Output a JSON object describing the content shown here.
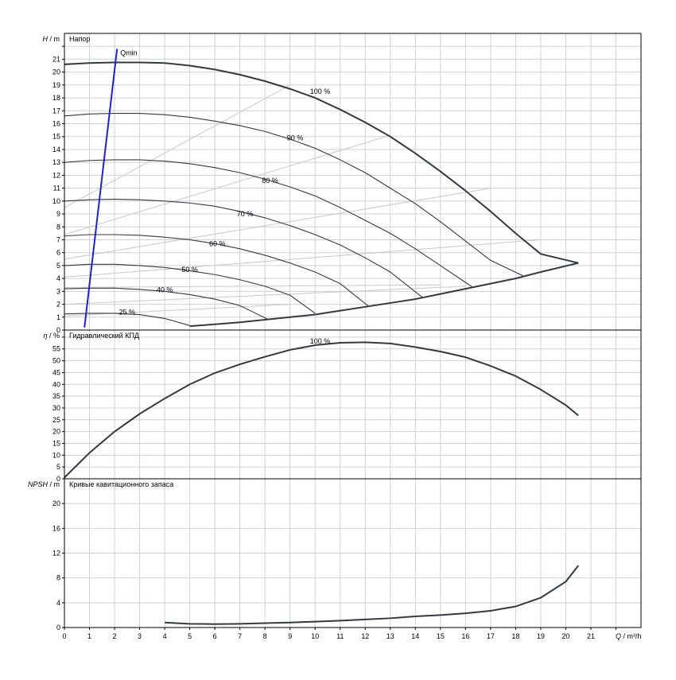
{
  "chart_data": [
    {
      "type": "line",
      "panel": "head",
      "title": "Напор",
      "ylabel_symbol": "H",
      "ylabel_unit": "/ m",
      "xlim": [
        0,
        23
      ],
      "ylim": [
        0,
        23
      ],
      "yticks": [
        0,
        1,
        2,
        3,
        4,
        5,
        6,
        7,
        8,
        9,
        10,
        11,
        12,
        13,
        14,
        15,
        16,
        17,
        18,
        19,
        20,
        21,
        22
      ],
      "ytick_labels": [
        "0",
        "1",
        "2",
        "3",
        "4",
        "5",
        "6",
        "7",
        "8",
        "9",
        "10",
        "11",
        "12",
        "13",
        "14",
        "15",
        "16",
        "17",
        "18",
        "19",
        "20",
        "21",
        ""
      ],
      "grid": true,
      "qmin": {
        "label": "Qmin",
        "points": [
          [
            0.8,
            0.2
          ],
          [
            2.1,
            21.8
          ]
        ],
        "color": "#1f22c8"
      },
      "series": [
        {
          "label": "100 %",
          "label_at": [
            10.2,
            18.5
          ],
          "points": [
            [
              0,
              20.6
            ],
            [
              1,
              20.7
            ],
            [
              2,
              20.75
            ],
            [
              3,
              20.75
            ],
            [
              4,
              20.7
            ],
            [
              5,
              20.5
            ],
            [
              6,
              20.2
            ],
            [
              7,
              19.8
            ],
            [
              8,
              19.3
            ],
            [
              9,
              18.7
            ],
            [
              10,
              18.0
            ],
            [
              11,
              17.1
            ],
            [
              12,
              16.1
            ],
            [
              13,
              15.0
            ],
            [
              14,
              13.7
            ],
            [
              15,
              12.3
            ],
            [
              16,
              10.8
            ],
            [
              17,
              9.2
            ],
            [
              18,
              7.5
            ],
            [
              19,
              5.9
            ],
            [
              20.5,
              5.2
            ]
          ]
        },
        {
          "label": "90 %",
          "label_at": [
            9.2,
            14.9
          ],
          "points": [
            [
              0,
              16.6
            ],
            [
              1,
              16.75
            ],
            [
              2,
              16.8
            ],
            [
              3,
              16.8
            ],
            [
              4,
              16.7
            ],
            [
              5,
              16.5
            ],
            [
              6,
              16.2
            ],
            [
              7,
              15.85
            ],
            [
              8,
              15.4
            ],
            [
              9,
              14.8
            ],
            [
              10,
              14.1
            ],
            [
              11,
              13.2
            ],
            [
              12,
              12.2
            ],
            [
              13,
              11.0
            ],
            [
              14,
              9.8
            ],
            [
              15,
              8.4
            ],
            [
              16,
              6.9
            ],
            [
              17,
              5.4
            ],
            [
              18.3,
              4.2
            ]
          ]
        },
        {
          "label": "80 %",
          "label_at": [
            8.2,
            11.6
          ],
          "points": [
            [
              0,
              13.0
            ],
            [
              1,
              13.15
            ],
            [
              2,
              13.2
            ],
            [
              3,
              13.2
            ],
            [
              4,
              13.1
            ],
            [
              5,
              12.9
            ],
            [
              6,
              12.6
            ],
            [
              7,
              12.2
            ],
            [
              8,
              11.7
            ],
            [
              9,
              11.1
            ],
            [
              10,
              10.4
            ],
            [
              11,
              9.5
            ],
            [
              12,
              8.5
            ],
            [
              13,
              7.5
            ],
            [
              14,
              6.3
            ],
            [
              15,
              5.0
            ],
            [
              16.3,
              3.3
            ]
          ]
        },
        {
          "label": "70 %",
          "label_at": [
            7.2,
            9.0
          ],
          "points": [
            [
              0,
              10.0
            ],
            [
              1,
              10.1
            ],
            [
              2,
              10.15
            ],
            [
              3,
              10.1
            ],
            [
              4,
              10.0
            ],
            [
              5,
              9.85
            ],
            [
              6,
              9.6
            ],
            [
              7,
              9.2
            ],
            [
              8,
              8.7
            ],
            [
              9,
              8.1
            ],
            [
              10,
              7.4
            ],
            [
              11,
              6.6
            ],
            [
              12,
              5.6
            ],
            [
              13,
              4.5
            ],
            [
              14.3,
              2.5
            ]
          ]
        },
        {
          "label": "60 %",
          "label_at": [
            6.1,
            6.7
          ],
          "points": [
            [
              0,
              7.3
            ],
            [
              1,
              7.4
            ],
            [
              2,
              7.4
            ],
            [
              3,
              7.35
            ],
            [
              4,
              7.2
            ],
            [
              5,
              7.0
            ],
            [
              6,
              6.7
            ],
            [
              7,
              6.3
            ],
            [
              8,
              5.8
            ],
            [
              9,
              5.2
            ],
            [
              10,
              4.5
            ],
            [
              11,
              3.6
            ],
            [
              12.1,
              1.9
            ]
          ]
        },
        {
          "label": "50 %",
          "label_at": [
            5.0,
            4.7
          ],
          "points": [
            [
              0,
              5.0
            ],
            [
              1,
              5.1
            ],
            [
              2,
              5.1
            ],
            [
              3,
              5.0
            ],
            [
              4,
              4.85
            ],
            [
              5,
              4.6
            ],
            [
              6,
              4.3
            ],
            [
              7,
              3.9
            ],
            [
              8,
              3.4
            ],
            [
              9,
              2.7
            ],
            [
              10,
              1.3
            ]
          ]
        },
        {
          "label": "40 %",
          "label_at": [
            4.0,
            3.1
          ],
          "points": [
            [
              0,
              3.2
            ],
            [
              1,
              3.25
            ],
            [
              2,
              3.25
            ],
            [
              3,
              3.15
            ],
            [
              4,
              3.0
            ],
            [
              5,
              2.75
            ],
            [
              6,
              2.4
            ],
            [
              7,
              1.9
            ],
            [
              8.1,
              0.85
            ]
          ]
        },
        {
          "label": "25 %",
          "label_at": [
            2.5,
            1.4
          ],
          "points": [
            [
              0,
              1.25
            ],
            [
              1,
              1.3
            ],
            [
              2,
              1.3
            ],
            [
              3,
              1.2
            ],
            [
              4,
              0.9
            ],
            [
              5,
              0.35
            ]
          ]
        },
        {
          "label": "",
          "points": [
            [
              5,
              0.3
            ],
            [
              6,
              0.45
            ],
            [
              7,
              0.6
            ],
            [
              8,
              0.8
            ],
            [
              9,
              1.0
            ],
            [
              10,
              1.2
            ],
            [
              11,
              1.5
            ],
            [
              12,
              1.8
            ],
            [
              13,
              2.1
            ],
            [
              14,
              2.4
            ],
            [
              15,
              2.8
            ],
            [
              16,
              3.2
            ],
            [
              17,
              3.6
            ],
            [
              18,
              4.0
            ],
            [
              19,
              4.5
            ],
            [
              20.5,
              5.2
            ]
          ]
        }
      ],
      "iso_efficiency_lines": [
        {
          "points": [
            [
              0,
              9.5
            ],
            [
              9,
              19.0
            ]
          ]
        },
        {
          "points": [
            [
              0,
              7.4
            ],
            [
              13,
              15.1
            ]
          ]
        },
        {
          "points": [
            [
              0,
              5.5
            ],
            [
              17,
              11.0
            ]
          ]
        },
        {
          "points": [
            [
              0,
              4.1
            ],
            [
              19,
              7.0
            ]
          ]
        },
        {
          "points": [
            [
              0,
              3.3
            ],
            [
              15,
              3.5
            ]
          ]
        },
        {
          "points": [
            [
              0,
              2.0
            ],
            [
              16,
              3.4
            ]
          ]
        },
        {
          "points": [
            [
              0,
              1.1
            ],
            [
              9,
              2.0
            ]
          ]
        }
      ]
    },
    {
      "type": "line",
      "panel": "efficiency",
      "title": "Гидравлический КПД",
      "ylabel_symbol": "η",
      "ylabel_unit": "/ %",
      "xlim": [
        0,
        23
      ],
      "ylim": [
        0,
        63
      ],
      "yticks": [
        0,
        5,
        10,
        15,
        20,
        25,
        30,
        35,
        40,
        45,
        50,
        55,
        60
      ],
      "ytick_labels": [
        "0",
        "5",
        "10",
        "15",
        "20",
        "25",
        "30",
        "35",
        "40",
        "45",
        "50",
        "55",
        ""
      ],
      "grid": true,
      "series": [
        {
          "label": "100 %",
          "label_at": [
            10.2,
            58.2
          ],
          "points": [
            [
              0,
              0.5
            ],
            [
              1,
              11
            ],
            [
              2,
              20
            ],
            [
              3,
              27.5
            ],
            [
              4,
              34
            ],
            [
              5,
              40
            ],
            [
              6,
              44.8
            ],
            [
              7,
              48.5
            ],
            [
              8,
              51.7
            ],
            [
              9,
              54.6
            ],
            [
              10,
              56.6
            ],
            [
              11,
              57.6
            ],
            [
              12,
              57.8
            ],
            [
              13,
              57.3
            ],
            [
              14,
              55.8
            ],
            [
              15,
              53.9
            ],
            [
              16,
              51.5
            ],
            [
              17,
              47.8
            ],
            [
              18,
              43.5
            ],
            [
              19,
              37.8
            ],
            [
              20,
              31.2
            ],
            [
              20.5,
              26.8
            ]
          ]
        }
      ]
    },
    {
      "type": "line",
      "panel": "npsh",
      "title": "Кривые кавитационного запаса",
      "ylabel_symbol": "NPSH",
      "ylabel_unit": "/ m",
      "xlabel_symbol": "Q",
      "xlabel_unit": "/ m³/h",
      "xlim": [
        0,
        23
      ],
      "ylim": [
        0,
        24
      ],
      "yticks": [
        0,
        4,
        8,
        12,
        16,
        20
      ],
      "ytick_labels": [
        "0",
        "4",
        "8",
        "12",
        "16",
        "20"
      ],
      "xticks": [
        0,
        1,
        2,
        3,
        4,
        5,
        6,
        7,
        8,
        9,
        10,
        11,
        12,
        13,
        14,
        15,
        16,
        17,
        18,
        19,
        20,
        21,
        22
      ],
      "xtick_labels": [
        "0",
        "1",
        "2",
        "3",
        "4",
        "5",
        "6",
        "7",
        "8",
        "9",
        "10",
        "11",
        "12",
        "13",
        "14",
        "15",
        "16",
        "17",
        "18",
        "19",
        "20",
        "21",
        ""
      ],
      "grid": true,
      "series": [
        {
          "label": "",
          "points": [
            [
              4,
              0.8
            ],
            [
              5,
              0.6
            ],
            [
              6,
              0.55
            ],
            [
              7,
              0.6
            ],
            [
              8,
              0.7
            ],
            [
              9,
              0.8
            ],
            [
              10,
              0.95
            ],
            [
              11,
              1.1
            ],
            [
              12,
              1.3
            ],
            [
              13,
              1.5
            ],
            [
              14,
              1.8
            ],
            [
              15,
              2.0
            ],
            [
              16,
              2.3
            ],
            [
              17,
              2.7
            ],
            [
              18,
              3.4
            ],
            [
              19,
              4.8
            ],
            [
              20,
              7.4
            ],
            [
              20.5,
              10.0
            ]
          ]
        }
      ]
    }
  ]
}
